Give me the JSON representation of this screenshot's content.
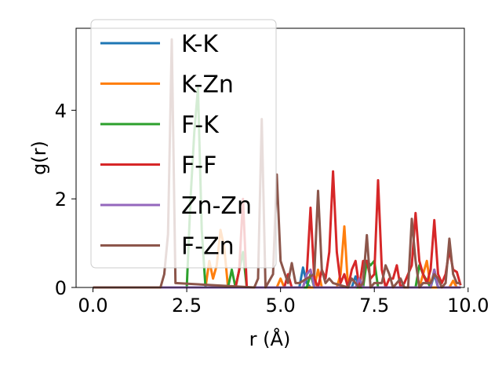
{
  "chart_data": {
    "type": "line",
    "xlabel": "r (Å)",
    "ylabel": "g(r)",
    "xlim": [
      -0.45,
      9.9
    ],
    "ylim": [
      0,
      5.85
    ],
    "xticks": [
      0.0,
      2.5,
      5.0,
      7.5,
      10.0
    ],
    "xtick_labels": [
      "0.0",
      "2.5",
      "5.0",
      "7.5",
      "10.0"
    ],
    "yticks": [
      0,
      2,
      4
    ],
    "ytick_labels": [
      "0",
      "2",
      "4"
    ],
    "legend_position": "upper-left",
    "grid": false,
    "series": [
      {
        "name": "K-K",
        "color": "#1f77b4",
        "x": [
          0,
          5.5,
          5.6,
          5.7,
          5.8,
          6.9,
          7.0,
          7.1,
          9.0,
          9.1,
          9.2,
          9.8
        ],
        "y": [
          0,
          0,
          0.45,
          0.1,
          0,
          0,
          0.25,
          0,
          0,
          0.3,
          0,
          0
        ]
      },
      {
        "name": "K-Zn",
        "color": "#ff7f0e",
        "x": [
          0,
          3.0,
          3.1,
          3.2,
          3.3,
          3.4,
          3.5,
          3.6,
          4.9,
          5.0,
          5.1,
          5.9,
          6.0,
          6.1,
          6.5,
          6.6,
          6.7,
          6.8,
          8.7,
          8.8,
          8.9,
          9.0,
          9.5,
          9.6,
          9.7,
          9.8
        ],
        "y": [
          0,
          0,
          0.6,
          0.2,
          0.5,
          1.3,
          0.9,
          0,
          0,
          0.2,
          0,
          0,
          0.4,
          0,
          0,
          0.3,
          1.38,
          0,
          0,
          0.3,
          0.6,
          0,
          0,
          0.15,
          0,
          0
        ]
      },
      {
        "name": "F-K",
        "color": "#2ca02c",
        "x": [
          0,
          2.5,
          2.6,
          2.7,
          2.8,
          2.9,
          3.0,
          3.6,
          3.7,
          3.8,
          4.0,
          4.1,
          5.7,
          5.8,
          5.9,
          7.2,
          7.3,
          7.4,
          7.5,
          7.6,
          8.6,
          8.7,
          8.8,
          9.0,
          9.1,
          9.2,
          9.8
        ],
        "y": [
          0,
          0,
          2.0,
          3.5,
          4.5,
          1.3,
          0,
          0,
          0.4,
          0,
          0.8,
          0,
          0,
          0.3,
          0,
          0,
          0.6,
          0.5,
          0.6,
          0,
          0,
          0.5,
          0.3,
          0,
          0.4,
          0,
          0
        ]
      },
      {
        "name": "F-F",
        "color": "#d62728",
        "x": [
          0,
          3.8,
          3.9,
          4.0,
          4.1,
          5.1,
          5.2,
          5.3,
          5.6,
          5.7,
          5.8,
          5.9,
          6.0,
          6.1,
          6.2,
          6.3,
          6.4,
          6.5,
          6.6,
          6.7,
          6.8,
          6.9,
          7.0,
          7.1,
          7.2,
          7.3,
          7.4,
          7.5,
          7.6,
          7.7,
          7.8,
          7.9,
          8.0,
          8.1,
          8.2,
          8.3,
          8.4,
          8.5,
          8.6,
          8.7,
          8.8,
          8.9,
          9.0,
          9.1,
          9.2,
          9.3,
          9.4,
          9.5,
          9.6,
          9.7,
          9.8
        ],
        "y": [
          0,
          0,
          0.4,
          2.0,
          0,
          0,
          0.3,
          0,
          0,
          0.3,
          1.8,
          0.2,
          0,
          0.4,
          0.2,
          0.8,
          2.62,
          0.8,
          0.1,
          0.3,
          0,
          0.4,
          0.6,
          0,
          0.6,
          0.6,
          0.2,
          0.3,
          2.42,
          0.4,
          0,
          0.2,
          0.2,
          0.5,
          0,
          0.1,
          0.3,
          0.5,
          1.68,
          0.6,
          0.3,
          0.1,
          0.4,
          1.52,
          0.3,
          0.1,
          0.3,
          0.85,
          0.4,
          0.35,
          0.05
        ]
      },
      {
        "name": "Zn-Zn",
        "color": "#9467bd",
        "x": [
          0,
          5.6,
          5.7,
          5.8,
          5.9,
          7.0,
          7.1,
          7.2,
          9.0,
          9.1,
          9.2,
          9.8
        ],
        "y": [
          0,
          0,
          0.3,
          0.4,
          0,
          0,
          0.2,
          0,
          0,
          0.4,
          0,
          0
        ]
      },
      {
        "name": "F-Zn",
        "color": "#8c564b",
        "x": [
          0,
          1.8,
          1.9,
          2.0,
          2.1,
          2.2,
          4.3,
          4.4,
          4.5,
          4.6,
          4.8,
          4.9,
          5.0,
          5.1,
          5.2,
          5.3,
          5.4,
          5.5,
          5.9,
          6.0,
          6.1,
          6.2,
          6.3,
          6.4,
          6.8,
          6.9,
          7.0,
          7.1,
          7.2,
          7.3,
          7.4,
          7.5,
          7.7,
          7.8,
          7.9,
          8.0,
          8.1,
          8.2,
          8.3,
          8.4,
          8.5,
          8.6,
          8.7,
          8.8,
          9.0,
          9.1,
          9.2,
          9.3,
          9.4,
          9.5,
          9.6,
          9.7,
          9.8
        ],
        "y": [
          0,
          0,
          0.3,
          1.2,
          5.6,
          0.1,
          0,
          0.2,
          3.8,
          0,
          0.3,
          2.55,
          0.6,
          0.35,
          0.1,
          0.55,
          0.1,
          0.1,
          0.3,
          2.18,
          0.4,
          0.1,
          0.2,
          0.1,
          0,
          0.2,
          0.1,
          0,
          0.1,
          1.18,
          0,
          0.1,
          0.1,
          0.5,
          0.3,
          0,
          0.1,
          0.2,
          0,
          0,
          1.55,
          0.6,
          0,
          0.1,
          0.1,
          0.3,
          0.2,
          0,
          0.1,
          1.1,
          0.3,
          0.1,
          0.1
        ]
      }
    ]
  }
}
